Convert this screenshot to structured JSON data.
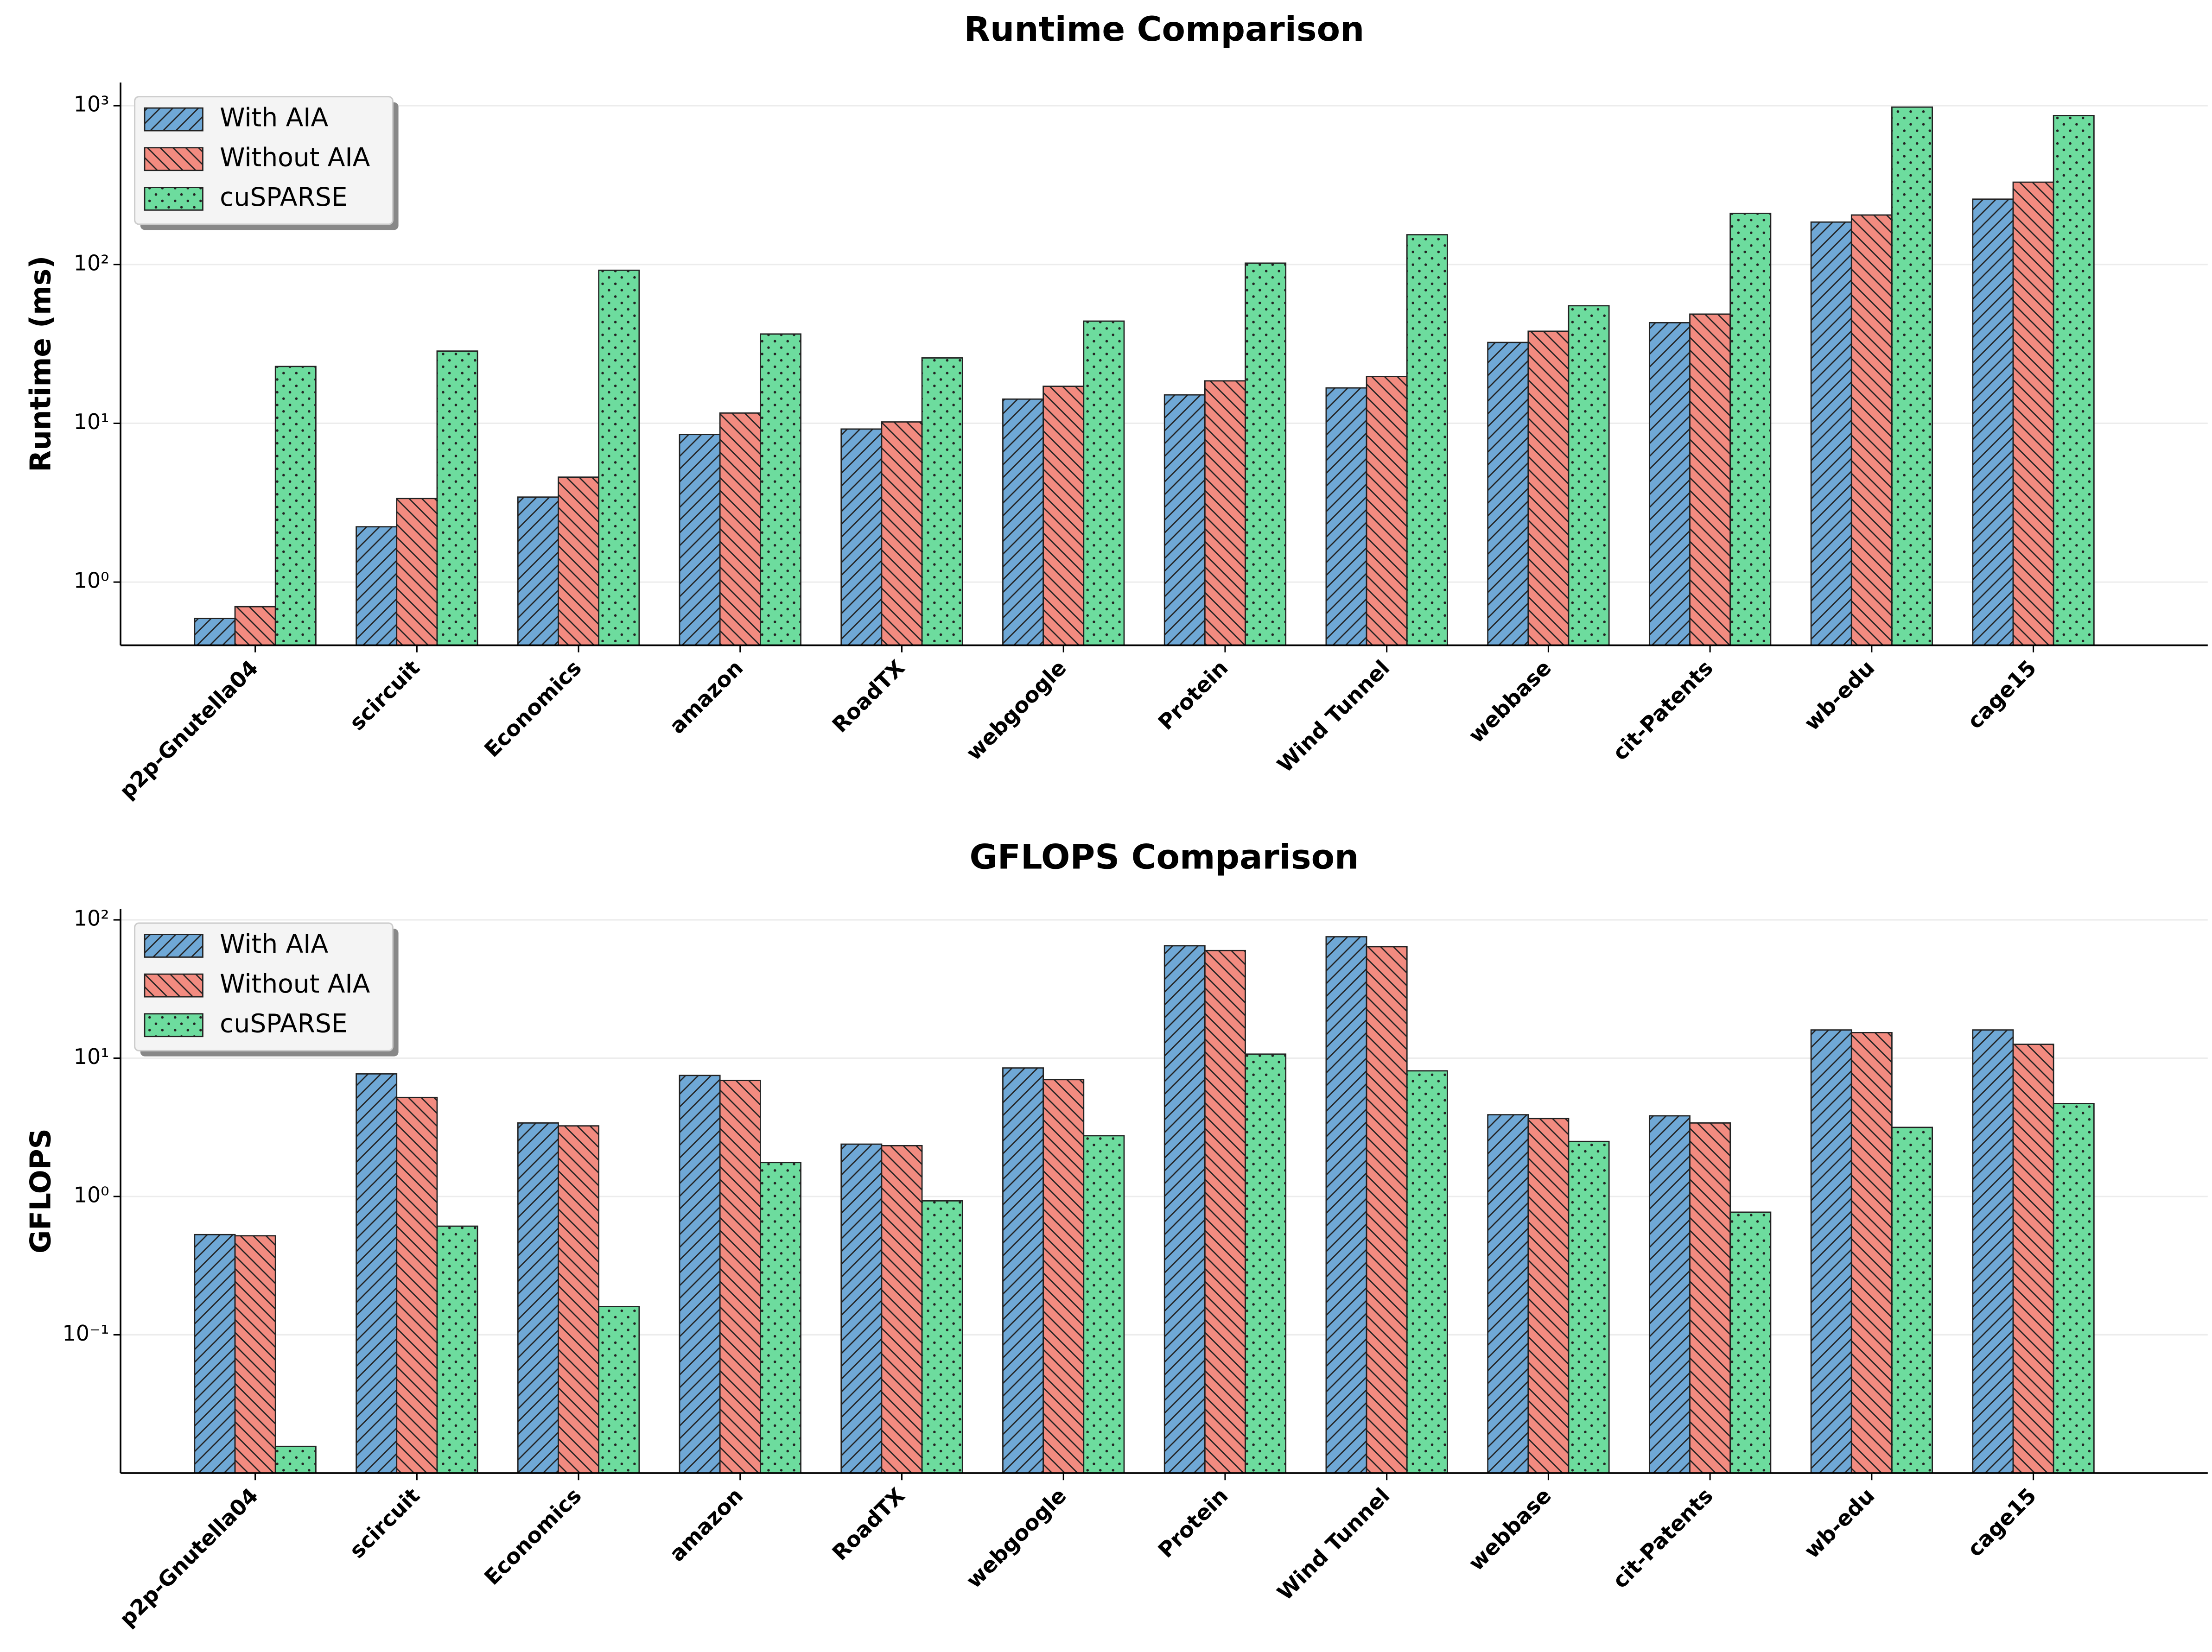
{
  "chart_data": [
    {
      "type": "bar",
      "title": "Runtime Comparison",
      "ylabel": "Runtime (ms)",
      "log_scale": true,
      "grid": true,
      "legend": "upper left",
      "categories": [
        "p2p-Gnutella04",
        "scircuit",
        "Economics",
        "amazon",
        "RoadTX",
        "webgoogle",
        "Protein",
        "Wind Tunnel",
        "webbase",
        "cit-Patents",
        "wb-edu",
        "cage15"
      ],
      "series": [
        {
          "name": "With AIA",
          "color": "#6fa8d6",
          "hatch": "/",
          "values": [
            0.59,
            2.23,
            3.43,
            8.5,
            9.2,
            14.2,
            15.1,
            16.7,
            32.3,
            43,
            185,
            258
          ]
        },
        {
          "name": "Without AIA",
          "color": "#f28b80",
          "hatch": "\\",
          "values": [
            0.7,
            3.36,
            4.58,
            11.6,
            10.2,
            17.1,
            18.5,
            19.7,
            38,
            48.7,
            205,
            330
          ]
        },
        {
          "name": "cuSPARSE",
          "color": "#6ddc9e",
          "hatch": ".",
          "values": [
            22.8,
            28.5,
            92,
            36.5,
            25.8,
            44,
            102,
            154,
            55,
            210,
            980,
            867
          ]
        }
      ],
      "ylim": [
        0.4,
        1400
      ],
      "yticks": [
        {
          "value": 1,
          "label": "10⁰"
        },
        {
          "value": 10,
          "label": "10¹"
        },
        {
          "value": 100,
          "label": "10²"
        },
        {
          "value": 1000,
          "label": "10³"
        }
      ]
    },
    {
      "type": "bar",
      "title": "GFLOPS Comparison",
      "ylabel": "GFLOPS",
      "log_scale": true,
      "grid": true,
      "legend": "upper left",
      "categories": [
        "p2p-Gnutella04",
        "scircuit",
        "Economics",
        "amazon",
        "RoadTX",
        "webgoogle",
        "Protein",
        "Wind Tunnel",
        "webbase",
        "cit-Patents",
        "wb-edu",
        "cage15"
      ],
      "series": [
        {
          "name": "With AIA",
          "color": "#6fa8d6",
          "hatch": "/",
          "values": [
            0.53,
            7.7,
            3.4,
            7.5,
            2.39,
            8.5,
            65,
            75.5,
            3.9,
            3.83,
            16,
            16
          ]
        },
        {
          "name": "Without AIA",
          "color": "#f28b80",
          "hatch": "\\",
          "values": [
            0.52,
            5.2,
            3.24,
            6.9,
            2.33,
            7.0,
            60,
            64,
            3.66,
            3.4,
            15.3,
            12.6
          ]
        },
        {
          "name": "cuSPARSE",
          "color": "#6ddc9e",
          "hatch": ".",
          "values": [
            0.0156,
            0.61,
            0.16,
            1.76,
            0.93,
            2.75,
            10.7,
            8.1,
            2.5,
            0.77,
            3.16,
            4.7
          ]
        }
      ],
      "ylim": [
        0.01,
        120
      ],
      "yticks": [
        {
          "value": 0.1,
          "label": "10⁻¹"
        },
        {
          "value": 1,
          "label": "10⁰"
        },
        {
          "value": 10,
          "label": "10¹"
        },
        {
          "value": 100,
          "label": "10²"
        }
      ]
    }
  ]
}
